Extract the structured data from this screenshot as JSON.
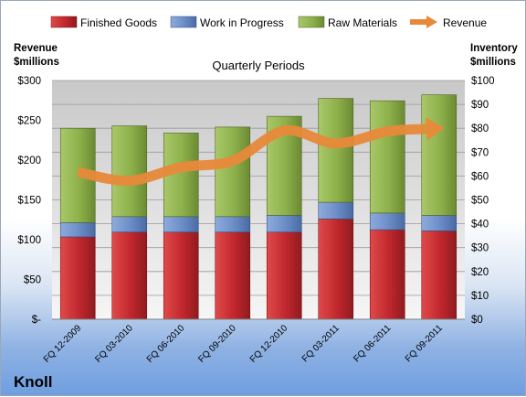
{
  "chart_data": {
    "type": "bar",
    "title": "Quarterly Periods",
    "company": "Knoll",
    "left_axis": {
      "label_line1": "Revenue",
      "label_line2": "$millions",
      "range": [
        0,
        300
      ],
      "ticks": [
        "$-",
        "$50",
        "$100",
        "$150",
        "$200",
        "$250",
        "$300"
      ]
    },
    "right_axis": {
      "label_line1": "Inventory",
      "label_line2": "$millions",
      "range": [
        0,
        100
      ],
      "ticks": [
        "$0",
        "$10",
        "$20",
        "$30",
        "$40",
        "$50",
        "$60",
        "$70",
        "$80",
        "$90",
        "$100"
      ]
    },
    "categories": [
      "FQ 12-2009",
      "FQ 03-2010",
      "FQ 06-2010",
      "FQ 09-2010",
      "FQ 12-2010",
      "FQ 03-2011",
      "FQ 06-2011",
      "FQ 09-2011"
    ],
    "series": [
      {
        "name": "Finished Goods",
        "color": "#c0272d",
        "axis": "right",
        "values": [
          34.5,
          36.5,
          36.5,
          36.5,
          36.5,
          42,
          37.5,
          37
        ]
      },
      {
        "name": "Work in Progress",
        "color": "#6a8cc6",
        "axis": "right",
        "values": [
          6,
          6.5,
          6.5,
          6.5,
          7,
          7,
          7,
          6.5
        ]
      },
      {
        "name": "Raw Materials",
        "color": "#8db04a",
        "axis": "right",
        "values": [
          39.5,
          38,
          35,
          37.5,
          41.5,
          43.5,
          47,
          50.5
        ]
      },
      {
        "name": "Revenue",
        "color": "#e8893a",
        "axis": "left",
        "type": "line",
        "values": [
          185,
          174,
          191,
          199,
          237,
          221,
          236,
          240
        ]
      }
    ],
    "grid": true,
    "legend": "top"
  }
}
